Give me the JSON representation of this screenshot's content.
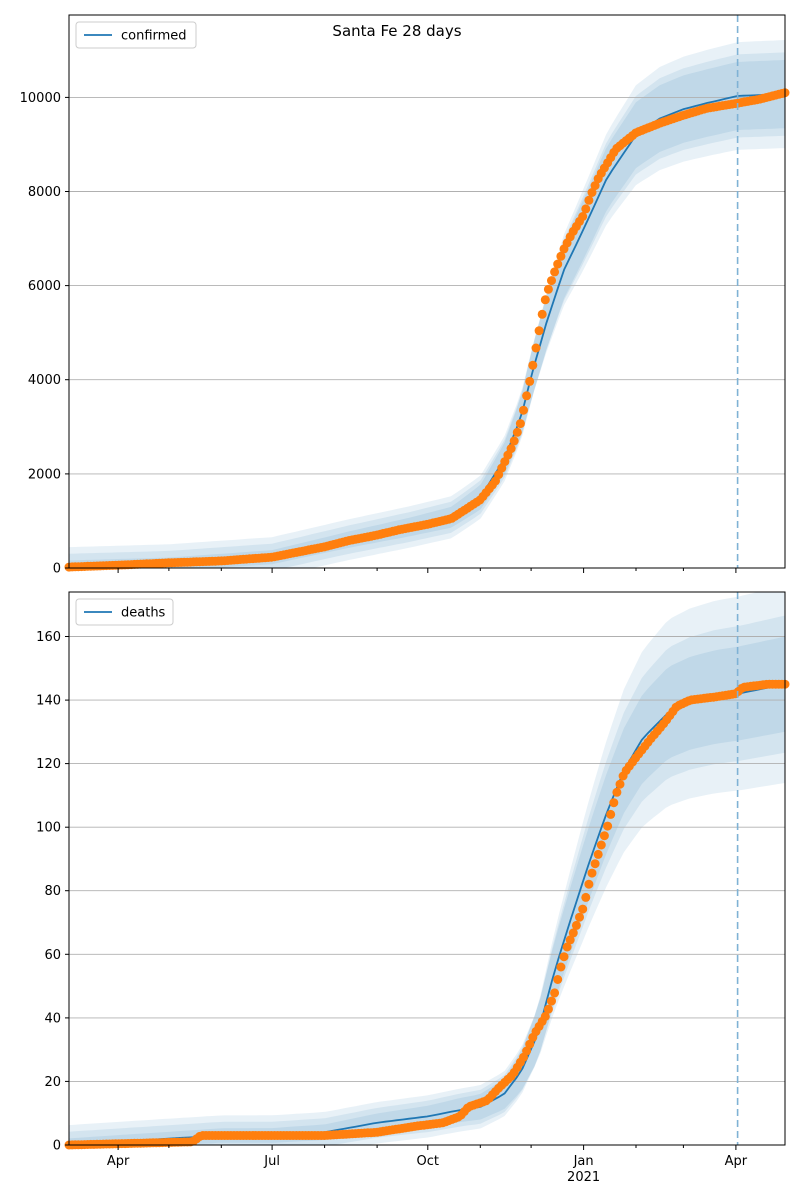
{
  "colors": {
    "model": "#1f77b4",
    "observed": "#ff7f0e",
    "band": "#1f77b4",
    "grid": "#b0b0b0",
    "cutoff": "#7fb2d5"
  },
  "chart_data": [
    {
      "type": "line",
      "title": "Santa Fe 28 days",
      "legend": [
        "confirmed"
      ],
      "legend_position": "top-left",
      "grid": "y",
      "x_tick_labels": [
        "Apr",
        "Jul",
        "Oct",
        "Jan",
        "Apr"
      ],
      "x_tick_year": "2021",
      "x_range": [
        "2020-03-03",
        "2021-04-30"
      ],
      "forecast_start": "2021-04-02",
      "ylim": [
        0,
        11750
      ],
      "yticks": [
        0,
        2000,
        4000,
        6000,
        8000,
        10000
      ],
      "series": [
        {
          "name": "confirmed",
          "style": "model-line-with-bands",
          "points": [
            [
              "2020-03-03",
              20
            ],
            [
              "2020-05-01",
              80
            ],
            [
              "2020-07-01",
              230
            ],
            [
              "2020-08-15",
              600
            ],
            [
              "2020-09-20",
              870
            ],
            [
              "2020-10-15",
              1080
            ],
            [
              "2020-11-01",
              1500
            ],
            [
              "2020-11-15",
              2300
            ],
            [
              "2020-11-25",
              3200
            ],
            [
              "2020-12-02",
              4200
            ],
            [
              "2020-12-10",
              5200
            ],
            [
              "2020-12-20",
              6300
            ],
            [
              "2021-01-01",
              7200
            ],
            [
              "2021-01-15",
              8300
            ],
            [
              "2021-02-01",
              9200
            ],
            [
              "2021-02-15",
              9550
            ],
            [
              "2021-03-01",
              9750
            ],
            [
              "2021-03-15",
              9880
            ],
            [
              "2021-04-02",
              10030
            ],
            [
              "2021-04-30",
              10070
            ]
          ],
          "bands": [
            0.1,
            0.06,
            0.03
          ]
        },
        {
          "points": [
            [
              "2020-03-03",
              20
            ],
            [
              "2020-04-01",
              60
            ],
            [
              "2020-05-01",
              110
            ],
            [
              "2020-06-01",
              150
            ],
            [
              "2020-07-01",
              230
            ],
            [
              "2020-07-15",
              330
            ],
            [
              "2020-08-01",
              450
            ],
            [
              "2020-08-15",
              580
            ],
            [
              "2020-09-01",
              700
            ],
            [
              "2020-09-15",
              820
            ],
            [
              "2020-10-01",
              930
            ],
            [
              "2020-10-15",
              1050
            ],
            [
              "2020-11-01",
              1450
            ],
            [
              "2020-11-10",
              1850
            ],
            [
              "2020-11-20",
              2600
            ],
            [
              "2020-11-25",
              3100
            ],
            [
              "2020-11-28",
              3600
            ],
            [
              "2020-12-01",
              4100
            ],
            [
              "2020-12-04",
              4700
            ],
            [
              "2020-12-07",
              5300
            ],
            [
              "2020-12-10",
              5800
            ],
            [
              "2020-12-15",
              6300
            ],
            [
              "2020-12-20",
              6750
            ],
            [
              "2020-12-25",
              7100
            ],
            [
              "2021-01-01",
              7500
            ],
            [
              "2021-01-05",
              7900
            ],
            [
              "2021-01-10",
              8300
            ],
            [
              "2021-01-20",
              8900
            ],
            [
              "2021-02-01",
              9250
            ],
            [
              "2021-02-15",
              9450
            ],
            [
              "2021-03-01",
              9620
            ],
            [
              "2021-03-15",
              9770
            ],
            [
              "2021-04-01",
              9870
            ],
            [
              "2021-04-15",
              9960
            ],
            [
              "2021-04-30",
              10100
            ]
          ],
          "style": "observed-dots"
        }
      ]
    },
    {
      "type": "line",
      "legend": [
        "deaths"
      ],
      "legend_position": "top-left",
      "grid": "y",
      "x_tick_labels": [
        "Apr",
        "Jul",
        "Oct",
        "Jan",
        "Apr"
      ],
      "x_tick_year": "2021",
      "x_range": [
        "2020-03-03",
        "2021-04-30"
      ],
      "forecast_start": "2021-04-02",
      "ylim": [
        0,
        174
      ],
      "yticks": [
        0,
        20,
        40,
        60,
        80,
        100,
        120,
        140,
        160
      ],
      "series": [
        {
          "name": "deaths",
          "style": "model-line-with-bands",
          "points": [
            [
              "2020-03-03",
              0
            ],
            [
              "2020-04-01",
              1
            ],
            [
              "2020-05-01",
              2
            ],
            [
              "2020-06-01",
              3
            ],
            [
              "2020-07-01",
              3
            ],
            [
              "2020-08-01",
              4
            ],
            [
              "2020-09-01",
              7
            ],
            [
              "2020-10-01",
              9
            ],
            [
              "2020-10-20",
              11
            ],
            [
              "2020-11-01",
              12
            ],
            [
              "2020-11-15",
              16
            ],
            [
              "2020-11-25",
              23
            ],
            [
              "2020-12-05",
              35
            ],
            [
              "2020-12-15",
              55
            ],
            [
              "2020-12-25",
              72
            ],
            [
              "2021-01-05",
              90
            ],
            [
              "2021-01-15",
              105
            ],
            [
              "2021-01-25",
              118
            ],
            [
              "2021-02-05",
              128
            ],
            [
              "2021-02-20",
              136
            ],
            [
              "2021-03-05",
              139
            ],
            [
              "2021-03-20",
              141
            ],
            [
              "2021-04-02",
              142
            ],
            [
              "2021-04-30",
              145
            ]
          ],
          "bands": [
            0.2,
            0.12,
            0.06
          ]
        },
        {
          "points": [
            [
              "2020-03-03",
              0
            ],
            [
              "2020-05-15",
              1
            ],
            [
              "2020-05-20",
              3
            ],
            [
              "2020-08-01",
              3
            ],
            [
              "2020-09-01",
              4
            ],
            [
              "2020-09-25",
              6
            ],
            [
              "2020-10-10",
              7
            ],
            [
              "2020-10-20",
              9
            ],
            [
              "2020-10-25",
              12
            ],
            [
              "2020-11-05",
              14
            ],
            [
              "2020-11-12",
              18
            ],
            [
              "2020-11-20",
              22
            ],
            [
              "2020-11-27",
              28
            ],
            [
              "2020-12-03",
              35
            ],
            [
              "2020-12-10",
              41
            ],
            [
              "2020-12-15",
              48
            ],
            [
              "2020-12-18",
              55
            ],
            [
              "2020-12-22",
              62
            ],
            [
              "2020-12-27",
              68
            ],
            [
              "2021-01-01",
              75
            ],
            [
              "2021-01-05",
              84
            ],
            [
              "2021-01-10",
              92
            ],
            [
              "2021-01-15",
              100
            ],
            [
              "2021-01-20",
              110
            ],
            [
              "2021-01-25",
              117
            ],
            [
              "2021-02-01",
              122
            ],
            [
              "2021-02-10",
              128
            ],
            [
              "2021-02-18",
              133
            ],
            [
              "2021-02-25",
              138
            ],
            [
              "2021-03-05",
              140
            ],
            [
              "2021-03-20",
              141
            ],
            [
              "2021-04-01",
              142
            ],
            [
              "2021-04-05",
              144
            ],
            [
              "2021-04-20",
              145
            ],
            [
              "2021-04-30",
              145
            ]
          ],
          "style": "observed-dots"
        }
      ]
    }
  ]
}
